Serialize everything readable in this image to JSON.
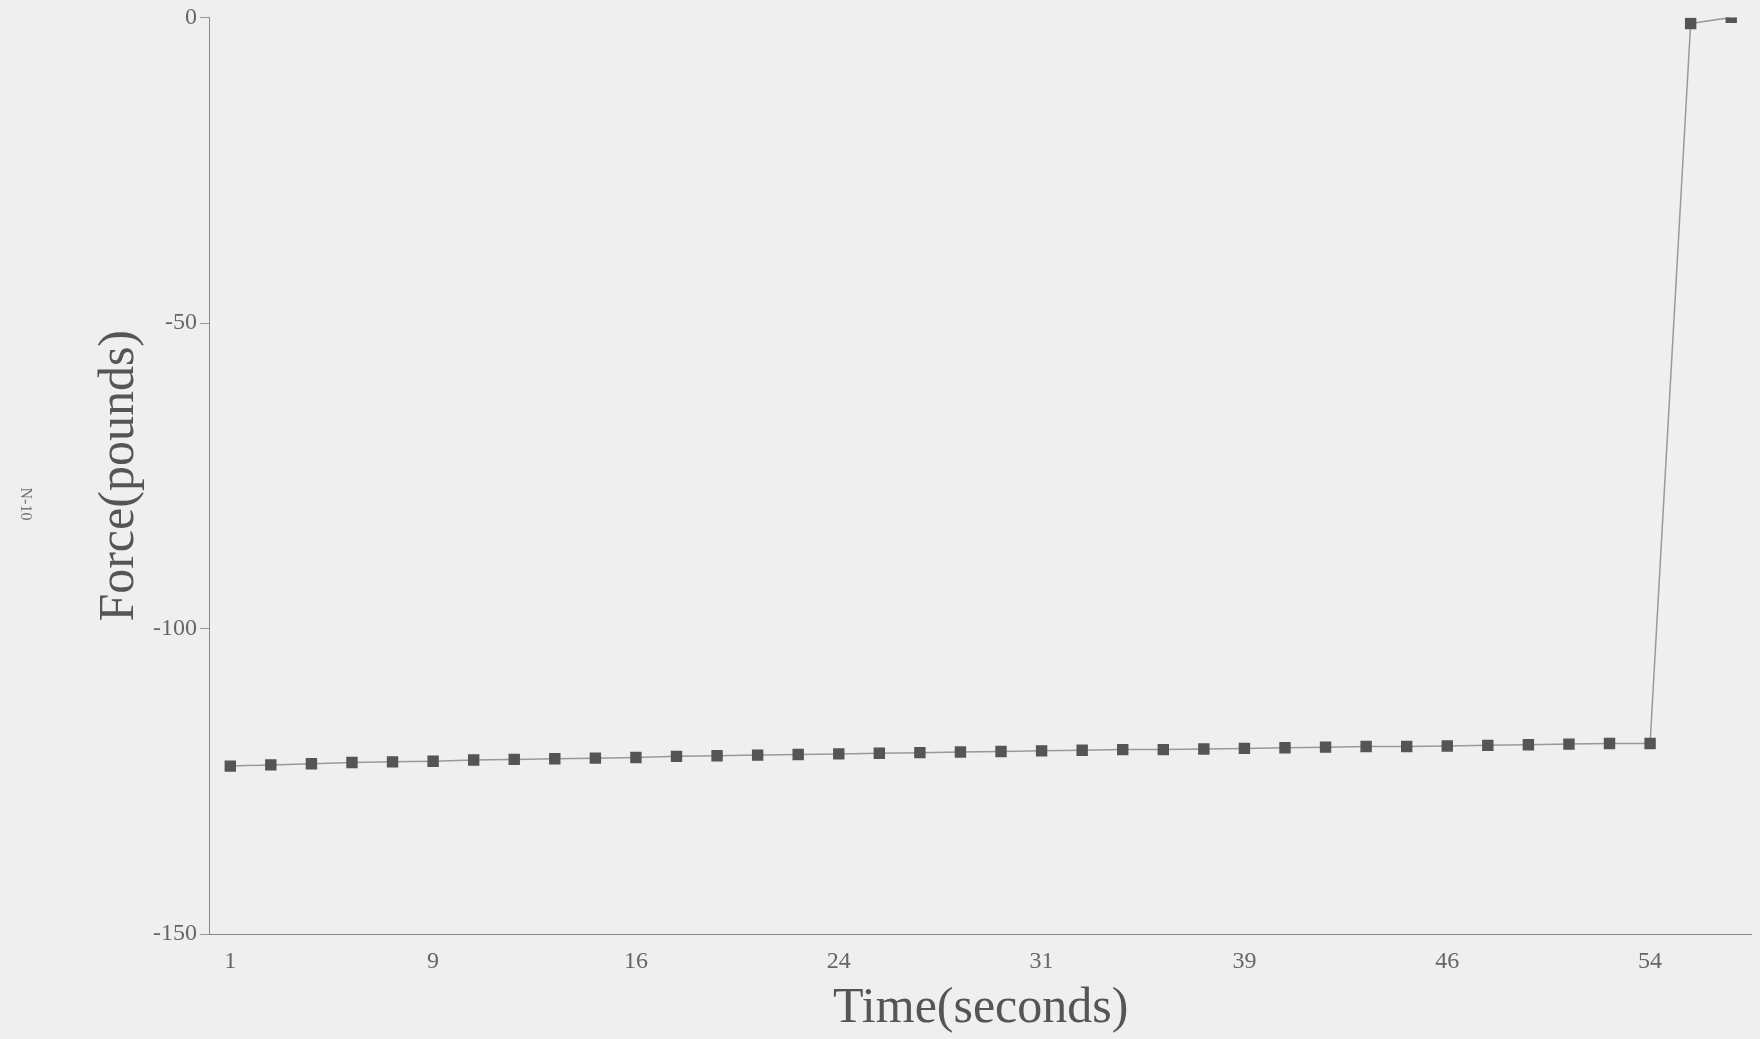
{
  "chart_data": {
    "type": "line",
    "xlabel": "Time(seconds)",
    "ylabel": "Force(pounds)",
    "annotations": [
      "N-10"
    ],
    "categories": [
      "1",
      null,
      null,
      null,
      null,
      "9",
      null,
      null,
      null,
      null,
      "16",
      null,
      null,
      null,
      null,
      "24",
      null,
      null,
      null,
      null,
      "31",
      null,
      null,
      null,
      null,
      "39",
      null,
      null,
      null,
      null,
      "46",
      null,
      null,
      null,
      null,
      "54",
      null,
      null
    ],
    "series": [
      {
        "color": "#555555",
        "values": [
          -122.5,
          -122.3,
          -122.1,
          -121.9,
          -121.8,
          -121.7,
          -121.5,
          -121.4,
          -121.3,
          -121.2,
          -121.1,
          -120.9,
          -120.8,
          -120.7,
          -120.6,
          -120.5,
          -120.4,
          -120.3,
          -120.2,
          -120.1,
          -120.0,
          -119.9,
          -119.8,
          -119.8,
          -119.7,
          -119.6,
          -119.5,
          -119.4,
          -119.3,
          -119.3,
          -119.2,
          -119.1,
          -119.0,
          -118.9,
          -118.8,
          -118.8,
          -1,
          0
        ]
      }
    ],
    "ylim": [
      -150,
      0
    ],
    "yticks": [
      0,
      -50,
      -100,
      -150
    ],
    "grid": false,
    "legend": false,
    "marker": "square",
    "line_style": "solid"
  }
}
